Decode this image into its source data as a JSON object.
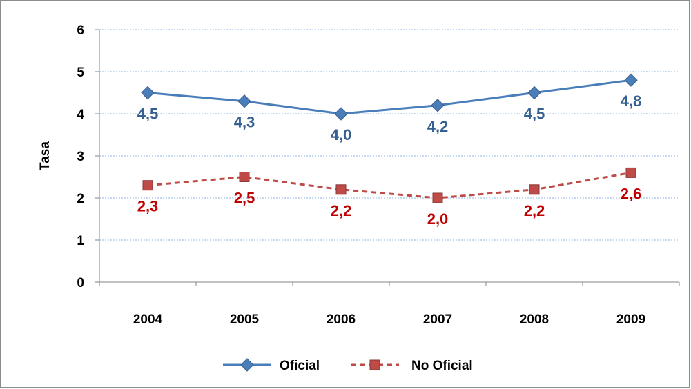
{
  "chart_data": {
    "type": "line",
    "title": "",
    "xlabel": "",
    "ylabel": "Tasa",
    "categories": [
      "2004",
      "2005",
      "2006",
      "2007",
      "2008",
      "2009"
    ],
    "ylim": [
      0,
      6
    ],
    "yticks": [
      "0",
      "1",
      "2",
      "3",
      "4",
      "5",
      "6"
    ],
    "grid": true,
    "legend_position": "bottom",
    "series": [
      {
        "name": "Oficial",
        "values": [
          4.5,
          4.3,
          4.0,
          4.2,
          4.5,
          4.8
        ],
        "labels": [
          "4,5",
          "4,3",
          "4,0",
          "4,2",
          "4,5",
          "4,8"
        ],
        "color": "#4a7ebb",
        "label_color": "#376092",
        "marker": "diamond",
        "line_style": "solid"
      },
      {
        "name": "No Oficial",
        "values": [
          2.3,
          2.5,
          2.2,
          2.0,
          2.2,
          2.6
        ],
        "labels": [
          "2,3",
          "2,5",
          "2,2",
          "2,0",
          "2,2",
          "2,6"
        ],
        "color": "#be4b48",
        "label_color": "#c00000",
        "marker": "square",
        "line_style": "dashed"
      }
    ]
  }
}
